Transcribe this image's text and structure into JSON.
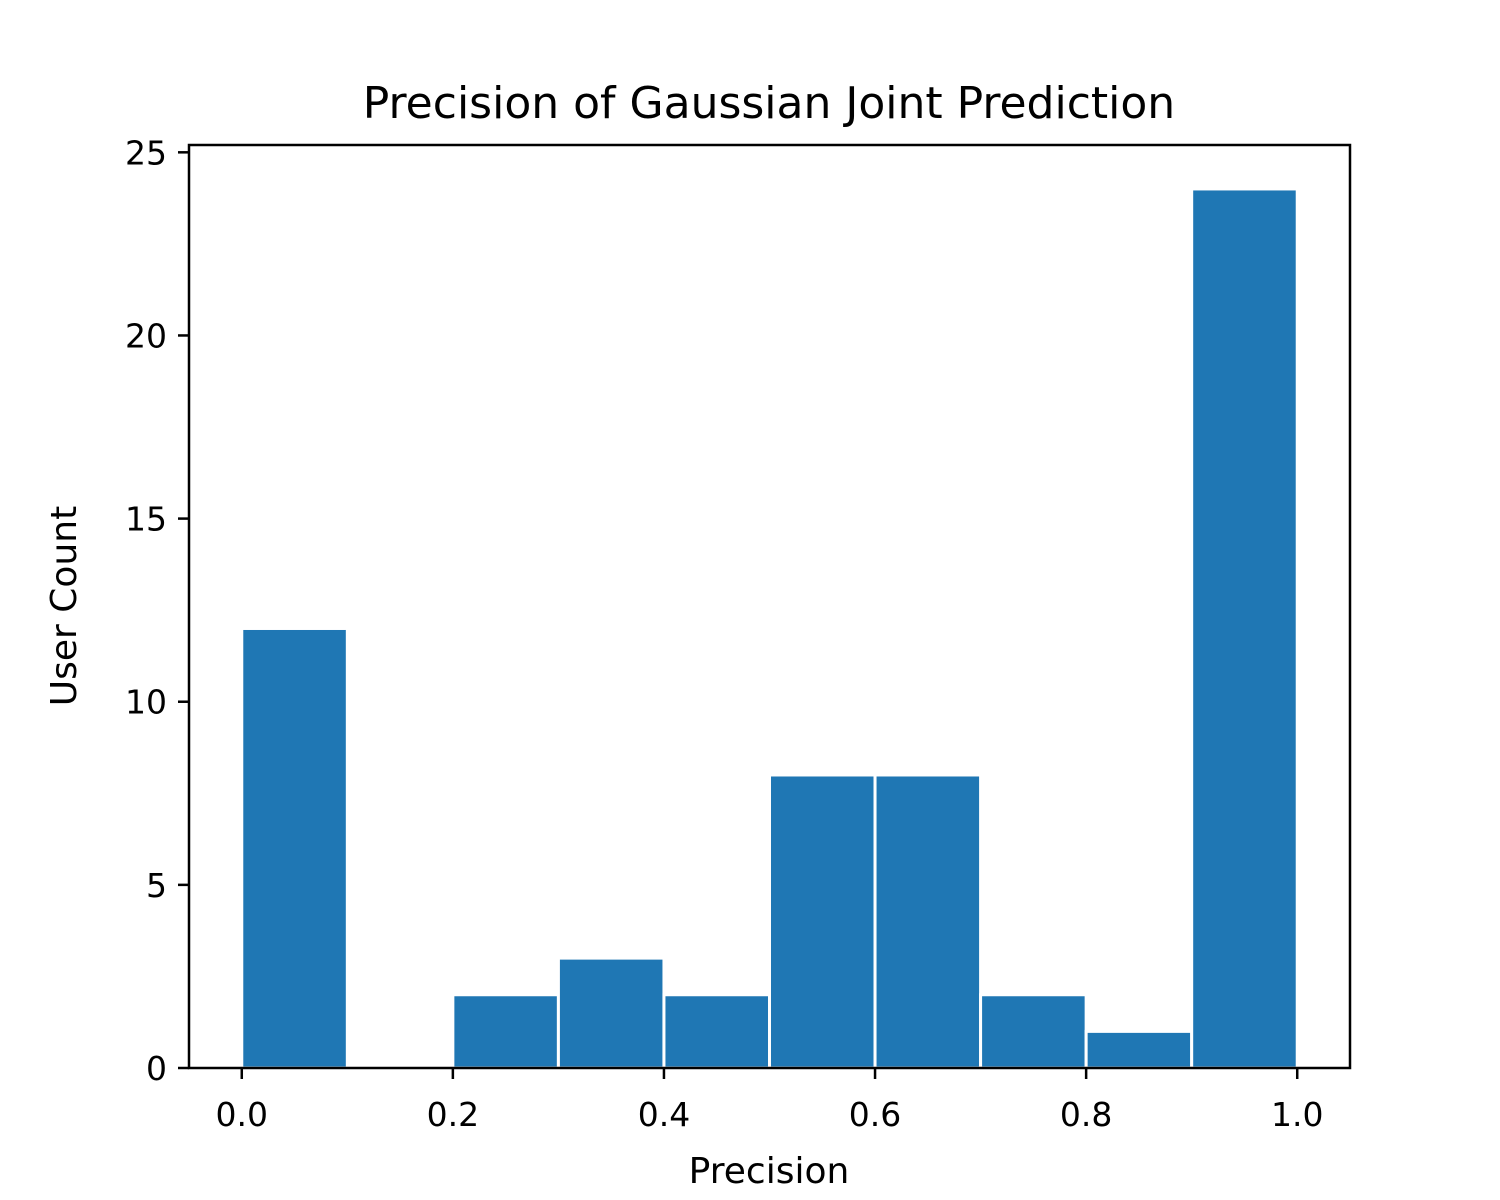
{
  "chart_data": {
    "type": "bar",
    "title": "Precision of Gaussian Joint Prediction",
    "xlabel": "Precision",
    "ylabel": "User Count",
    "bin_edges": [
      0.0,
      0.1,
      0.2,
      0.3,
      0.4,
      0.5,
      0.6,
      0.7,
      0.8,
      0.9,
      1.0
    ],
    "values": [
      12,
      0,
      2,
      3,
      2,
      8,
      8,
      2,
      1,
      24
    ],
    "xlim": [
      -0.05,
      1.05
    ],
    "ylim": [
      0,
      25.2
    ],
    "xticks": [
      0.0,
      0.2,
      0.4,
      0.6,
      0.8,
      1.0
    ],
    "xtick_labels": [
      "0.0",
      "0.2",
      "0.4",
      "0.6",
      "0.8",
      "1.0"
    ],
    "yticks": [
      0,
      5,
      10,
      15,
      20,
      25
    ],
    "ytick_labels": [
      "0",
      "5",
      "10",
      "15",
      "20",
      "25"
    ],
    "bar_color": "#1f77b4",
    "edge_color": "#ffffff",
    "grid": false,
    "legend": "none"
  }
}
